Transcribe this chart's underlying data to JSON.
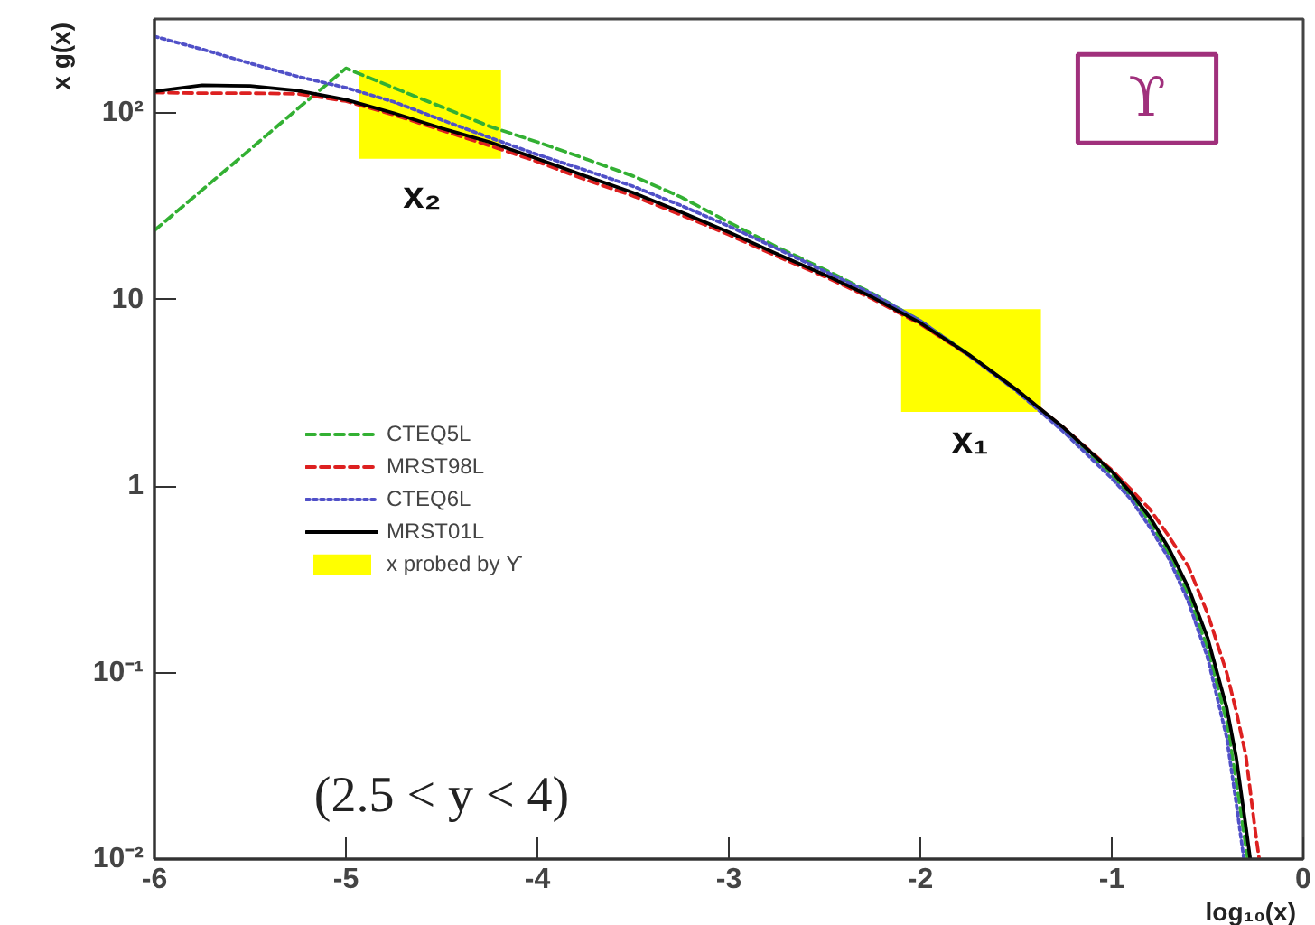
{
  "chart_data": {
    "type": "line",
    "xlabel": "log₁₀(x)",
    "ylabel": "x g(x)",
    "xlim": [
      -6,
      0
    ],
    "ylim": [
      0.01,
      320
    ],
    "log": "y",
    "xticks": [
      -6,
      -5,
      -4,
      -3,
      -2,
      -1,
      0
    ],
    "yticks": [
      {
        "value": 0.01,
        "label": "10⁻²"
      },
      {
        "value": 0.1,
        "label": "10⁻¹"
      },
      1,
      10,
      {
        "value": 100,
        "label": "10²"
      }
    ],
    "legend": "left",
    "series": [
      {
        "name": "CTEQ5L",
        "color": "#33b033",
        "line_style": "dashed",
        "x": [
          -6,
          -5.75,
          -5.5,
          -5.25,
          -5,
          -4.75,
          -4.5,
          -4.25,
          -4,
          -3.75,
          -3.5,
          -3.25,
          -3,
          -2.75,
          -2.5,
          -2.25,
          -2,
          -1.75,
          -1.5,
          -1.25,
          -1,
          -0.9,
          -0.8,
          -0.7,
          -0.6,
          -0.5,
          -0.4,
          -0.35,
          -0.29
        ],
        "values": [
          23.5,
          38.8,
          64,
          106,
          174,
          137,
          108,
          85,
          70,
          57,
          46,
          35.5,
          26,
          19.2,
          14.5,
          10.8,
          7.7,
          5.1,
          3.3,
          2.0,
          1.15,
          0.88,
          0.64,
          0.43,
          0.26,
          0.135,
          0.055,
          0.026,
          0.01
        ]
      },
      {
        "name": "MRST98L",
        "color": "#dd2020",
        "line_style": "dashed",
        "x": [
          -6,
          -5.75,
          -5.5,
          -5.25,
          -5,
          -4.75,
          -4.5,
          -4.25,
          -4,
          -3.75,
          -3.5,
          -3.25,
          -3,
          -2.75,
          -2.5,
          -2.25,
          -2,
          -1.75,
          -1.5,
          -1.25,
          -1,
          -0.9,
          -0.8,
          -0.7,
          -0.6,
          -0.5,
          -0.4,
          -0.35,
          -0.3,
          -0.25,
          -0.23
        ],
        "values": [
          129,
          128,
          128,
          127,
          116,
          98,
          81,
          67,
          55,
          44,
          36,
          28.5,
          22.3,
          17.1,
          13.3,
          10.1,
          7.4,
          5.05,
          3.3,
          2.05,
          1.22,
          0.96,
          0.75,
          0.535,
          0.37,
          0.208,
          0.1,
          0.062,
          0.036,
          0.014,
          0.01
        ]
      },
      {
        "name": "CTEQ6L",
        "color": "#5050c8",
        "line_style": "dotted",
        "x": [
          -6,
          -5.75,
          -5.5,
          -5.25,
          -5,
          -4.75,
          -4.5,
          -4.25,
          -4,
          -3.75,
          -3.5,
          -3.25,
          -3,
          -2.75,
          -2.5,
          -2.25,
          -2,
          -1.75,
          -1.5,
          -1.25,
          -1,
          -0.9,
          -0.8,
          -0.7,
          -0.6,
          -0.5,
          -0.4,
          -0.35,
          -0.31
        ],
        "values": [
          258,
          220,
          185,
          157,
          137,
          115,
          92,
          74,
          60,
          49.5,
          40.5,
          32,
          24.8,
          18.8,
          14.2,
          10.7,
          7.7,
          5.05,
          3.25,
          1.95,
          1.1,
          0.85,
          0.6,
          0.405,
          0.24,
          0.121,
          0.045,
          0.02,
          0.01
        ]
      },
      {
        "name": "MRST01L",
        "color": "#000000",
        "line_style": "solid",
        "x": [
          -6,
          -5.75,
          -5.5,
          -5.25,
          -5,
          -4.75,
          -4.5,
          -4.25,
          -4,
          -3.75,
          -3.5,
          -3.25,
          -3,
          -2.75,
          -2.5,
          -2.25,
          -2,
          -1.75,
          -1.5,
          -1.25,
          -1,
          -0.9,
          -0.8,
          -0.7,
          -0.6,
          -0.5,
          -0.4,
          -0.35,
          -0.3,
          -0.277
        ],
        "values": [
          131,
          141,
          140,
          132,
          118,
          100,
          83,
          70,
          57,
          46,
          37.5,
          29.5,
          23,
          17.6,
          13.6,
          10.3,
          7.5,
          5.1,
          3.3,
          2.05,
          1.2,
          0.92,
          0.68,
          0.46,
          0.285,
          0.154,
          0.065,
          0.035,
          0.015,
          0.01
        ]
      },
      {
        "name": "x probed by ϒ",
        "type": "area",
        "color": "#ffff00",
        "x": [
          -4.93,
          -4.19,
          null,
          -2.1,
          -1.37
        ],
        "values": [
          null,
          null,
          null,
          null,
          null
        ],
        "lower": [
          57,
          57,
          null,
          2.5,
          2.5
        ],
        "upper": [
          170,
          170,
          null,
          8.9,
          8.9
        ]
      }
    ],
    "annotations": [
      "x₂",
      "x₁",
      "ϒ",
      "(2.5 < y < 4)"
    ]
  }
}
